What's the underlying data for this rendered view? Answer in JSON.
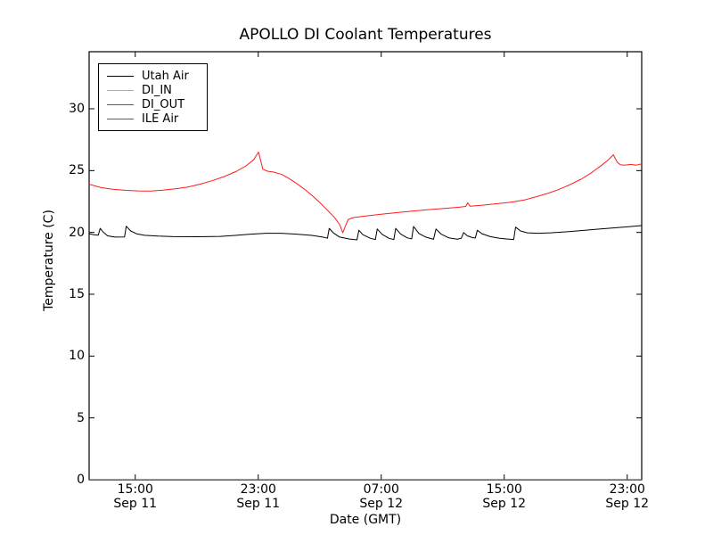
{
  "chart_data": {
    "type": "line",
    "title": "APOLLO DI Coolant Temperatures",
    "xlabel": "Date (GMT)",
    "ylabel": "Temperature (C)",
    "ylim": [
      0,
      34.6
    ],
    "yticks": [
      0,
      5,
      10,
      15,
      20,
      25,
      30
    ],
    "xticks": [
      {
        "hour": 3,
        "time": "15:00",
        "date": "Sep 11"
      },
      {
        "hour": 11,
        "time": "23:00",
        "date": "Sep 11"
      },
      {
        "hour": 19,
        "time": "07:00",
        "date": "Sep 12"
      },
      {
        "hour": 27,
        "time": "15:00",
        "date": "Sep 12"
      },
      {
        "hour": 35,
        "time": "23:00",
        "date": "Sep 12"
      }
    ],
    "xlim_hours": [
      0,
      35.94
    ],
    "x_axis_note": "hours after Sep 11 12:00 GMT",
    "grid": false,
    "legend_position": "upper left",
    "background_color": "#ffffff",
    "axis_color": "#000000",
    "series": [
      {
        "name": "Utah Air",
        "color": "#000000",
        "opacity": 1,
        "points": [
          [
            0,
            19.9
          ],
          [
            0.3,
            19.82
          ],
          [
            0.6,
            19.78
          ],
          [
            0.72,
            20.33
          ],
          [
            0.9,
            20.05
          ],
          [
            1.2,
            19.72
          ],
          [
            1.7,
            19.62
          ],
          [
            2.3,
            19.63
          ],
          [
            2.42,
            20.5
          ],
          [
            2.7,
            20.12
          ],
          [
            3.1,
            19.88
          ],
          [
            3.6,
            19.77
          ],
          [
            4.5,
            19.7
          ],
          [
            5.5,
            19.66
          ],
          [
            7,
            19.65
          ],
          [
            8.5,
            19.68
          ],
          [
            9.5,
            19.76
          ],
          [
            10.5,
            19.86
          ],
          [
            11.5,
            19.93
          ],
          [
            12.5,
            19.93
          ],
          [
            13.5,
            19.86
          ],
          [
            14.5,
            19.76
          ],
          [
            15.2,
            19.62
          ],
          [
            15.5,
            19.53
          ],
          [
            15.62,
            20.33
          ],
          [
            15.9,
            19.95
          ],
          [
            16.3,
            19.62
          ],
          [
            16.9,
            19.47
          ],
          [
            17.42,
            19.4
          ],
          [
            17.55,
            20.18
          ],
          [
            17.8,
            19.82
          ],
          [
            18.3,
            19.52
          ],
          [
            18.62,
            19.43
          ],
          [
            18.74,
            20.28
          ],
          [
            19.05,
            19.85
          ],
          [
            19.5,
            19.52
          ],
          [
            19.82,
            19.43
          ],
          [
            19.94,
            20.33
          ],
          [
            20.25,
            19.88
          ],
          [
            20.7,
            19.56
          ],
          [
            20.98,
            19.48
          ],
          [
            21.1,
            20.48
          ],
          [
            21.45,
            19.92
          ],
          [
            21.9,
            19.62
          ],
          [
            22.4,
            19.44
          ],
          [
            22.56,
            20.28
          ],
          [
            22.9,
            19.86
          ],
          [
            23.4,
            19.56
          ],
          [
            23.95,
            19.46
          ],
          [
            24.2,
            19.52
          ],
          [
            24.36,
            19.98
          ],
          [
            24.6,
            19.72
          ],
          [
            24.95,
            19.57
          ],
          [
            25.12,
            19.55
          ],
          [
            25.25,
            20.18
          ],
          [
            25.55,
            19.9
          ],
          [
            26.1,
            19.66
          ],
          [
            26.7,
            19.52
          ],
          [
            27.3,
            19.46
          ],
          [
            27.62,
            19.43
          ],
          [
            27.74,
            20.43
          ],
          [
            28.05,
            20.12
          ],
          [
            28.5,
            19.97
          ],
          [
            29.2,
            19.93
          ],
          [
            30,
            19.97
          ],
          [
            31,
            20.05
          ],
          [
            32,
            20.15
          ],
          [
            33,
            20.26
          ],
          [
            34,
            20.36
          ],
          [
            35,
            20.45
          ],
          [
            35.94,
            20.55
          ]
        ]
      },
      {
        "name": "DI_IN",
        "color": "#ffa500",
        "opacity": 0.7,
        "points": [
          [
            0,
            0
          ],
          [
            35.94,
            0
          ]
        ]
      },
      {
        "name": "DI_OUT",
        "color": "#993399",
        "opacity": 0.55,
        "points": [
          [
            0,
            0
          ],
          [
            35.94,
            0
          ]
        ]
      },
      {
        "name": "ILE Air",
        "color": "#ff1a1a",
        "opacity": 1,
        "points": [
          [
            0,
            23.9
          ],
          [
            0.8,
            23.62
          ],
          [
            1.6,
            23.48
          ],
          [
            2.4,
            23.4
          ],
          [
            3.2,
            23.36
          ],
          [
            4,
            23.35
          ],
          [
            4.8,
            23.42
          ],
          [
            5.6,
            23.53
          ],
          [
            6.4,
            23.66
          ],
          [
            7.2,
            23.9
          ],
          [
            8,
            24.18
          ],
          [
            8.8,
            24.53
          ],
          [
            9.6,
            24.95
          ],
          [
            10.2,
            25.38
          ],
          [
            10.7,
            25.88
          ],
          [
            11.02,
            26.5
          ],
          [
            11.3,
            25.12
          ],
          [
            11.6,
            24.95
          ],
          [
            12,
            24.88
          ],
          [
            12.35,
            24.76
          ],
          [
            12.55,
            24.68
          ],
          [
            13,
            24.36
          ],
          [
            13.5,
            23.96
          ],
          [
            14,
            23.5
          ],
          [
            14.5,
            23
          ],
          [
            15,
            22.42
          ],
          [
            15.5,
            21.8
          ],
          [
            16,
            21.15
          ],
          [
            16.3,
            20.62
          ],
          [
            16.5,
            19.97
          ],
          [
            16.65,
            20.45
          ],
          [
            16.85,
            21.05
          ],
          [
            17.2,
            21.2
          ],
          [
            17.8,
            21.3
          ],
          [
            18.5,
            21.4
          ],
          [
            19.2,
            21.5
          ],
          [
            20,
            21.6
          ],
          [
            21,
            21.72
          ],
          [
            22,
            21.83
          ],
          [
            23,
            21.93
          ],
          [
            24,
            22.03
          ],
          [
            24.5,
            22.1
          ],
          [
            24.62,
            22.4
          ],
          [
            24.78,
            22.12
          ],
          [
            25.5,
            22.2
          ],
          [
            26.5,
            22.32
          ],
          [
            27.5,
            22.46
          ],
          [
            28.3,
            22.62
          ],
          [
            29,
            22.86
          ],
          [
            29.8,
            23.15
          ],
          [
            30.5,
            23.45
          ],
          [
            31.2,
            23.82
          ],
          [
            32,
            24.3
          ],
          [
            32.7,
            24.85
          ],
          [
            33.3,
            25.4
          ],
          [
            33.8,
            25.9
          ],
          [
            34.1,
            26.28
          ],
          [
            34.35,
            25.68
          ],
          [
            34.55,
            25.48
          ],
          [
            34.85,
            25.44
          ],
          [
            35.2,
            25.5
          ],
          [
            35.6,
            25.44
          ],
          [
            35.94,
            25.55
          ]
        ]
      }
    ]
  }
}
